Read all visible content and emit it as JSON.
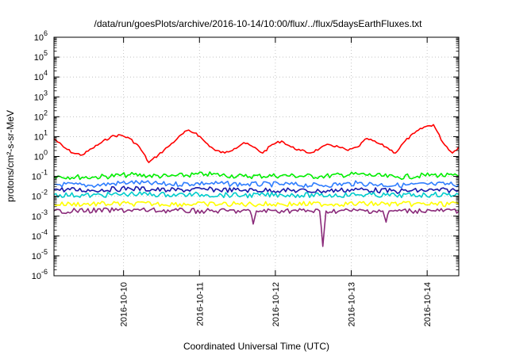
{
  "chart_data": {
    "type": "line",
    "title": "/data/run/goesPlots/archive/2016-10-14/10:00/flux/../flux/5daysEarthFluxes.txt",
    "xlabel": "Coordinated Universal Time (UTC)",
    "ylabel": "protons/cm²-s-sr-MeV",
    "y_scale": "log",
    "ylim": [
      1e-06,
      1000000.0
    ],
    "x_range": [
      "2016-10-09 02:00",
      "2016-10-14 10:00"
    ],
    "grid": true,
    "x_ticks": [
      "2016-10-10",
      "2016-10-11",
      "2016-10-12",
      "2016-10-13",
      "2016-10-14"
    ],
    "y_ticks": [
      {
        "base": "10",
        "exp": "-6"
      },
      {
        "base": "10",
        "exp": "-5"
      },
      {
        "base": "10",
        "exp": "-4"
      },
      {
        "base": "10",
        "exp": "-3"
      },
      {
        "base": "10",
        "exp": "-2"
      },
      {
        "base": "10",
        "exp": "-1"
      },
      {
        "base": "10",
        "exp": "0"
      },
      {
        "base": "10",
        "exp": "1"
      },
      {
        "base": "10",
        "exp": "2"
      },
      {
        "base": "10",
        "exp": "3"
      },
      {
        "base": "10",
        "exp": "4"
      },
      {
        "base": "10",
        "exp": "5"
      },
      {
        "base": "10",
        "exp": "6"
      }
    ],
    "series": [
      {
        "color": "#ff0000",
        "x": [
          "2016-10-09 02:00",
          "2016-10-09 05:00",
          "2016-10-09 08:00",
          "2016-10-09 11:00",
          "2016-10-09 14:00",
          "2016-10-09 17:00",
          "2016-10-09 20:00",
          "2016-10-09 23:00",
          "2016-10-10 02:00",
          "2016-10-10 05:00",
          "2016-10-10 08:00",
          "2016-10-10 11:00",
          "2016-10-10 14:00",
          "2016-10-10 17:00",
          "2016-10-10 20:00",
          "2016-10-10 23:00",
          "2016-10-11 02:00",
          "2016-10-11 05:00",
          "2016-10-11 08:00",
          "2016-10-11 11:00",
          "2016-10-11 14:00",
          "2016-10-11 17:00",
          "2016-10-11 20:00",
          "2016-10-11 23:00",
          "2016-10-12 02:00",
          "2016-10-12 05:00",
          "2016-10-12 08:00",
          "2016-10-12 11:00",
          "2016-10-12 14:00",
          "2016-10-12 17:00",
          "2016-10-12 20:00",
          "2016-10-12 23:00",
          "2016-10-13 02:00",
          "2016-10-13 05:00",
          "2016-10-13 08:00",
          "2016-10-13 11:00",
          "2016-10-13 14:00",
          "2016-10-13 17:00",
          "2016-10-13 20:00",
          "2016-10-13 23:00",
          "2016-10-14 02:00",
          "2016-10-14 05:00",
          "2016-10-14 08:00",
          "2016-10-14 10:00"
        ],
        "values": [
          8,
          3,
          1.5,
          1.2,
          2.5,
          5,
          10,
          12,
          8,
          3,
          0.5,
          1.2,
          3,
          8,
          20,
          15,
          5,
          2,
          1.5,
          2.5,
          5,
          3,
          1.5,
          4,
          6,
          3,
          2,
          1.5,
          2.5,
          4,
          3,
          2,
          3,
          8,
          5,
          3,
          1.5,
          6,
          15,
          30,
          40,
          5,
          1.5,
          3
        ]
      },
      {
        "color": "#00ee00",
        "x": [
          "2016-10-09 02:00",
          "2016-10-09 14:00",
          "2016-10-10 02:00",
          "2016-10-10 14:00",
          "2016-10-11 02:00",
          "2016-10-11 14:00",
          "2016-10-12 02:00",
          "2016-10-12 14:00",
          "2016-10-13 02:00",
          "2016-10-13 14:00",
          "2016-10-14 02:00",
          "2016-10-14 10:00"
        ],
        "values": [
          0.1,
          0.09,
          0.12,
          0.1,
          0.13,
          0.1,
          0.11,
          0.1,
          0.13,
          0.09,
          0.12,
          0.1
        ]
      },
      {
        "color": "#2e7dff",
        "x": [
          "2016-10-09 02:00",
          "2016-10-09 14:00",
          "2016-10-10 02:00",
          "2016-10-10 14:00",
          "2016-10-11 02:00",
          "2016-10-11 14:00",
          "2016-10-12 02:00",
          "2016-10-12 14:00",
          "2016-10-13 02:00",
          "2016-10-13 14:00",
          "2016-10-14 02:00",
          "2016-10-14 10:00"
        ],
        "values": [
          0.04,
          0.035,
          0.05,
          0.04,
          0.045,
          0.04,
          0.04,
          0.035,
          0.045,
          0.035,
          0.04,
          0.04
        ]
      },
      {
        "color": "#1a1aa8",
        "x": [
          "2016-10-09 02:00",
          "2016-10-09 14:00",
          "2016-10-10 02:00",
          "2016-10-10 14:00",
          "2016-10-11 02:00",
          "2016-10-11 14:00",
          "2016-10-12 02:00",
          "2016-10-12 14:00",
          "2016-10-13 02:00",
          "2016-10-13 14:00",
          "2016-10-14 02:00",
          "2016-10-14 10:00"
        ],
        "values": [
          0.022,
          0.02,
          0.025,
          0.02,
          0.022,
          0.02,
          0.02,
          0.018,
          0.022,
          0.018,
          0.02,
          0.02
        ]
      },
      {
        "color": "#00cccc",
        "x": [
          "2016-10-09 02:00",
          "2016-10-09 14:00",
          "2016-10-10 02:00",
          "2016-10-10 14:00",
          "2016-10-11 02:00",
          "2016-10-11 14:00",
          "2016-10-12 02:00",
          "2016-10-12 14:00",
          "2016-10-13 02:00",
          "2016-10-13 14:00",
          "2016-10-14 02:00",
          "2016-10-14 10:00"
        ],
        "values": [
          0.012,
          0.011,
          0.013,
          0.012,
          0.012,
          0.011,
          0.012,
          0.011,
          0.012,
          0.011,
          0.012,
          0.012
        ]
      },
      {
        "color": "#ffff00",
        "x": [
          "2016-10-09 02:00",
          "2016-10-10 02:00",
          "2016-10-11 02:00",
          "2016-10-12 02:00",
          "2016-10-13 02:00",
          "2016-10-14 02:00",
          "2016-10-14 10:00"
        ],
        "values": [
          0.004,
          0.0042,
          0.004,
          0.004,
          0.0042,
          0.004,
          0.004
        ]
      },
      {
        "color": "#8a2a7a",
        "x": [
          "2016-10-09 02:00",
          "2016-10-10 02:00",
          "2016-10-11 02:00",
          "2016-10-11 16:00",
          "2016-10-11 17:00",
          "2016-10-11 18:00",
          "2016-10-12 02:00",
          "2016-10-12 14:00",
          "2016-10-12 15:00",
          "2016-10-12 16:00",
          "2016-10-13 02:00",
          "2016-10-13 10:00",
          "2016-10-13 11:00",
          "2016-10-13 12:00",
          "2016-10-14 02:00",
          "2016-10-14 10:00"
        ],
        "values": [
          0.0018,
          0.002,
          0.0018,
          0.0018,
          0.0004,
          0.0018,
          0.0019,
          0.0018,
          3e-05,
          0.0018,
          0.0019,
          0.0018,
          0.0005,
          0.0018,
          0.0019,
          0.0018
        ]
      }
    ]
  }
}
